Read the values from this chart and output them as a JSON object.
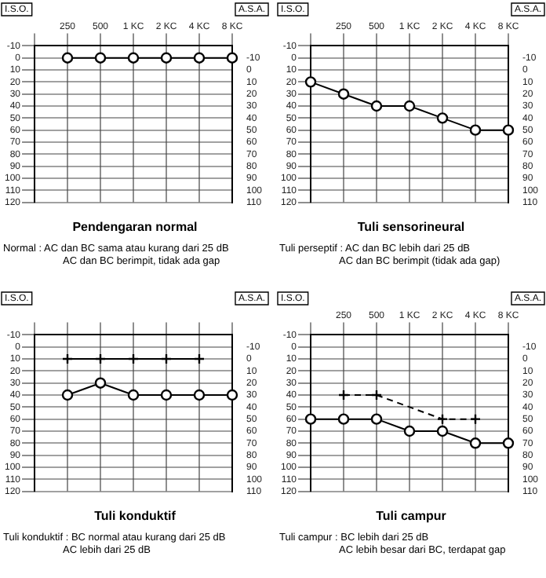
{
  "chart_data": [
    {
      "type": "line",
      "title": "Pendengaran normal",
      "ylabel": "I.S.O.",
      "y2label": "A.S.A.",
      "grid": true,
      "marker": "circle",
      "annotations": [
        "Normal :  AC dan BC sama atau kurang dari 25 dB",
        "AC dan BC berimpit, tidak ada gap"
      ],
      "categories": [
        null,
        "250",
        "500",
        "1 KC",
        "2 KC",
        "4 KC",
        "8 KC"
      ],
      "ylim": [
        120,
        -10
      ],
      "yticks": [
        -10,
        0,
        10,
        20,
        30,
        40,
        50,
        60,
        70,
        80,
        90,
        100,
        110,
        120
      ],
      "y2lim": [
        110,
        -20
      ],
      "y2ticks": [
        -10,
        0,
        10,
        20,
        30,
        40,
        50,
        60,
        70,
        80,
        90,
        100,
        110
      ],
      "series": [
        {
          "color": "#000000",
          "values": [
            null,
            0,
            0,
            0,
            0,
            0,
            0
          ]
        }
      ]
    },
    {
      "type": "line",
      "title": "Tuli sensorineural",
      "ylabel": "I.S.O.",
      "y2label": "A.S.A.",
      "grid": true,
      "marker": "circle",
      "annotations": [
        "Tuli perseptif : AC dan BC lebih dari 25 dB",
        "AC dan BC berimpit (tidak ada gap)"
      ],
      "categories": [
        null,
        "250",
        "500",
        "1 KC",
        "2 KC",
        "4 KC",
        "8 KC"
      ],
      "ylim": [
        120,
        -10
      ],
      "yticks": [
        -10,
        0,
        10,
        20,
        30,
        40,
        50,
        60,
        70,
        80,
        90,
        100,
        110,
        120
      ],
      "y2lim": [
        110,
        -20
      ],
      "y2ticks": [
        -10,
        0,
        10,
        20,
        30,
        40,
        50,
        60,
        70,
        80,
        90,
        100,
        110
      ],
      "series": [
        {
          "color": "#000000",
          "values": [
            20,
            30,
            40,
            40,
            50,
            60,
            60
          ]
        }
      ]
    },
    {
      "type": "line",
      "title": "Tuli konduktif",
      "ylabel": "I.S.O.",
      "y2label": "A.S.A.",
      "grid": true,
      "marker": "circle",
      "annotations": [
        "Tuli konduktif : BC normal atau kurang dari 25 dB",
        "AC lebih dari 25 dB"
      ],
      "categories": [
        null,
        null,
        null,
        null,
        null,
        null,
        null
      ],
      "ylim": [
        120,
        -10
      ],
      "yticks": [
        -10,
        0,
        10,
        20,
        30,
        40,
        50,
        60,
        70,
        80,
        90,
        100,
        110,
        120
      ],
      "y2lim": [
        110,
        -20
      ],
      "y2ticks": [
        -10,
        0,
        10,
        20,
        30,
        40,
        50,
        60,
        70,
        80,
        90,
        100,
        110
      ],
      "series": [
        {
          "color": "#000000",
          "marker": "cross",
          "values": [
            null,
            10,
            10,
            10,
            10,
            10,
            null
          ]
        },
        {
          "color": "#000000",
          "values": [
            null,
            40,
            30,
            40,
            40,
            40,
            40
          ]
        }
      ]
    },
    {
      "type": "line",
      "title": "Tuli campur",
      "ylabel": "I.S.O.",
      "y2label": "A.S.A.",
      "grid": true,
      "marker": "circle",
      "annotations": [
        "Tuli campur :  BC lebih dari 25 dB",
        "AC lebih besar dari BC, terdapat gap"
      ],
      "categories": [
        null,
        "250",
        "500",
        "1 KC",
        "2 KC",
        "4 KC",
        "8 KC"
      ],
      "ylim": [
        120,
        -10
      ],
      "yticks": [
        -10,
        0,
        10,
        20,
        30,
        40,
        50,
        60,
        70,
        80,
        90,
        100,
        110,
        120
      ],
      "y2lim": [
        110,
        -20
      ],
      "y2ticks": [
        -10,
        0,
        10,
        20,
        30,
        40,
        50,
        60,
        70,
        80,
        90,
        100,
        110
      ],
      "series": [
        {
          "color": "#000000",
          "marker": "cross",
          "line_style": "dashed",
          "values": [
            null,
            40,
            40,
            null,
            60,
            60,
            null
          ]
        },
        {
          "color": "#000000",
          "values": [
            60,
            60,
            60,
            70,
            70,
            80,
            80
          ]
        }
      ]
    }
  ]
}
